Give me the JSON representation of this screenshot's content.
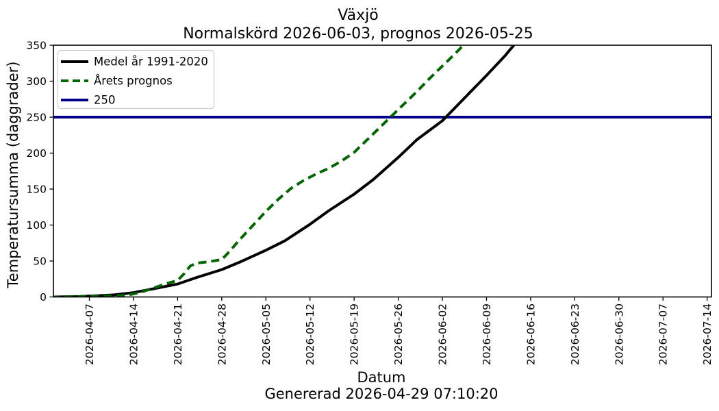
{
  "chart": {
    "title_line1": "Växjö",
    "title_line2": "Normalskörd 2026-06-03, prognos 2026-05-25",
    "xlabel": "Datum",
    "ylabel": "Temperatursumma (daggrader)",
    "caption": "Genererad 2026-04-29 07:10:20"
  },
  "chart_data": {
    "type": "line",
    "title": "Växjö\nNormalskörd 2026-06-03, prognos 2026-05-25",
    "xlabel": "Datum",
    "ylabel": "Temperatursumma (daggrader)",
    "caption": "Genererad 2026-04-29 07:10:20",
    "grid": false,
    "legend_position": "upper left",
    "ylim": [
      0,
      350
    ],
    "y_ticks": [
      0,
      50,
      100,
      150,
      200,
      250,
      300,
      350
    ],
    "x_tick_labels": [
      "2026-04-07",
      "2026-04-14",
      "2026-04-21",
      "2026-04-28",
      "2026-05-05",
      "2026-05-12",
      "2026-05-19",
      "2026-05-26",
      "2026-06-02",
      "2026-06-09",
      "2026-06-16",
      "2026-06-23",
      "2026-06-30",
      "2026-07-07",
      "2026-07-14"
    ],
    "xlim": [
      "2026-04-01",
      "2026-07-15"
    ],
    "series": [
      {
        "name": "Medel år 1991-2020",
        "color": "#000000",
        "style": "solid",
        "points": [
          [
            "2026-04-01",
            0
          ],
          [
            "2026-04-05",
            0.5
          ],
          [
            "2026-04-08",
            1.5
          ],
          [
            "2026-04-11",
            3
          ],
          [
            "2026-04-14",
            6
          ],
          [
            "2026-04-17",
            11
          ],
          [
            "2026-04-21",
            18
          ],
          [
            "2026-04-24",
            27
          ],
          [
            "2026-04-28",
            38
          ],
          [
            "2026-05-01",
            49
          ],
          [
            "2026-05-05",
            65
          ],
          [
            "2026-05-08",
            78
          ],
          [
            "2026-05-12",
            101
          ],
          [
            "2026-05-15",
            120
          ],
          [
            "2026-05-19",
            143
          ],
          [
            "2026-05-22",
            163
          ],
          [
            "2026-05-26",
            194
          ],
          [
            "2026-05-29",
            219
          ],
          [
            "2026-06-02",
            245
          ],
          [
            "2026-06-05",
            272
          ],
          [
            "2026-06-09",
            308
          ],
          [
            "2026-06-12",
            336
          ],
          [
            "2026-06-14",
            357
          ]
        ]
      },
      {
        "name": "Årets prognos",
        "color": "#006400",
        "style": "dashed",
        "points": [
          [
            "2026-04-01",
            0
          ],
          [
            "2026-04-05",
            0.5
          ],
          [
            "2026-04-08",
            1
          ],
          [
            "2026-04-11",
            1.5
          ],
          [
            "2026-04-13",
            2.5
          ],
          [
            "2026-04-15",
            6
          ],
          [
            "2026-04-17",
            12
          ],
          [
            "2026-04-19",
            18
          ],
          [
            "2026-04-21",
            23
          ],
          [
            "2026-04-22",
            32
          ],
          [
            "2026-04-23",
            43
          ],
          [
            "2026-04-24",
            47
          ],
          [
            "2026-04-26",
            49
          ],
          [
            "2026-04-28",
            52
          ],
          [
            "2026-04-29",
            61
          ],
          [
            "2026-05-01",
            81
          ],
          [
            "2026-05-03",
            100
          ],
          [
            "2026-05-05",
            119
          ],
          [
            "2026-05-07",
            136
          ],
          [
            "2026-05-09",
            151
          ],
          [
            "2026-05-11",
            162
          ],
          [
            "2026-05-13",
            171
          ],
          [
            "2026-05-15",
            179
          ],
          [
            "2026-05-17",
            189
          ],
          [
            "2026-05-19",
            201
          ],
          [
            "2026-05-21",
            218
          ],
          [
            "2026-05-23",
            235
          ],
          [
            "2026-05-25",
            252
          ],
          [
            "2026-05-27",
            269
          ],
          [
            "2026-05-29",
            286
          ],
          [
            "2026-05-31",
            304
          ],
          [
            "2026-06-02",
            321
          ],
          [
            "2026-06-04",
            338
          ],
          [
            "2026-06-06",
            356
          ]
        ]
      }
    ],
    "hline": {
      "label": "250",
      "y": 250,
      "color": "#00008B"
    }
  }
}
